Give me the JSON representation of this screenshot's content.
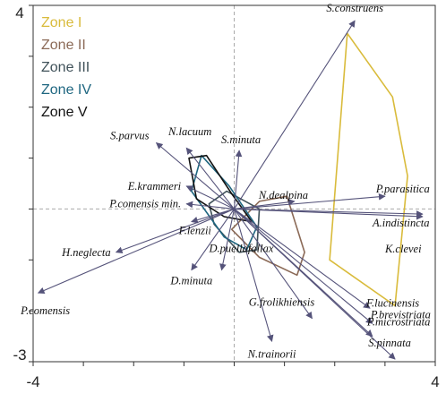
{
  "chart_data": {
    "type": "scatter",
    "title": "",
    "xlabel": "",
    "ylabel": "",
    "xlim": [
      -4,
      4
    ],
    "ylim": [
      -3,
      4
    ],
    "x_ticks": [
      "-4",
      "4"
    ],
    "y_ticks": [
      "4",
      "-3"
    ],
    "grid": false,
    "legend_placement": "top-left",
    "axis_color": "#333333",
    "zero_line_color": "#aaaaaa",
    "arrow_color": "#55537a",
    "species": [
      {
        "label": "S.construens",
        "x": 2.4,
        "y": 3.7
      },
      {
        "label": "S.parvus",
        "x": -1.55,
        "y": 1.3
      },
      {
        "label": "N.lacuum",
        "x": -0.95,
        "y": 1.2
      },
      {
        "label": "S.minuta",
        "x": 0.1,
        "y": 1.15
      },
      {
        "label": "E.krammeri",
        "x": -0.95,
        "y": 0.45
      },
      {
        "label": "N.dealpina",
        "x": 1.2,
        "y": 0.15
      },
      {
        "label": "P.parasitica",
        "x": 3.0,
        "y": 0.25
      },
      {
        "label": "P.comensis min.",
        "x": -0.95,
        "y": 0.1
      },
      {
        "label": "A.indistincta",
        "x": 3.75,
        "y": -0.1
      },
      {
        "label": "H.neglecta",
        "x": -2.35,
        "y": -0.85
      },
      {
        "label": "F.lenzii",
        "x": -0.85,
        "y": -0.25
      },
      {
        "label": "K.clevei",
        "x": 3.75,
        "y": -0.15
      },
      {
        "label": "D.minuta",
        "x": -0.85,
        "y": -1.2
      },
      {
        "label": "D.puellafallax",
        "x": -0.25,
        "y": -1.2
      },
      {
        "label": "P.comensis",
        "x": -3.9,
        "y": -1.65
      },
      {
        "label": "F.lucinensis",
        "x": 2.7,
        "y": -1.95
      },
      {
        "label": "G.frolikhiensis",
        "x": 1.55,
        "y": -2.15
      },
      {
        "label": "P.brevistriata",
        "x": 2.75,
        "y": -2.25
      },
      {
        "label": "P.microstriata",
        "x": 2.75,
        "y": -2.5
      },
      {
        "label": "N.trainorii",
        "x": 0.75,
        "y": -2.6
      },
      {
        "label": "S.pinnata",
        "x": 3.2,
        "y": -2.95
      }
    ],
    "zones": [
      {
        "name": "Zone I",
        "color": "#d9bb3b",
        "points": [
          [
            1.9,
            -1.0
          ],
          [
            3.2,
            -1.9
          ],
          [
            3.45,
            0.65
          ],
          [
            3.15,
            2.2
          ],
          [
            2.25,
            3.45
          ]
        ]
      },
      {
        "name": "Zone II",
        "color": "#8b6a57",
        "points": [
          [
            -0.05,
            -0.4
          ],
          [
            0.5,
            0.15
          ],
          [
            1.05,
            0.25
          ],
          [
            1.4,
            -0.85
          ],
          [
            1.25,
            -1.3
          ],
          [
            0.5,
            -0.95
          ]
        ]
      },
      {
        "name": "Zone III",
        "color": "#3f5159",
        "points": [
          [
            -0.5,
            0.1
          ],
          [
            -0.15,
            0.35
          ],
          [
            0.5,
            0.0
          ],
          [
            0.45,
            -0.8
          ],
          [
            0.1,
            -0.85
          ],
          [
            -0.4,
            -0.3
          ]
        ]
      },
      {
        "name": "Zone IV",
        "color": "#1e6680",
        "points": [
          [
            -0.85,
            0.35
          ],
          [
            -0.65,
            1.05
          ],
          [
            -0.1,
            0.45
          ],
          [
            0.45,
            -0.35
          ],
          [
            0.25,
            -0.8
          ],
          [
            -0.2,
            -0.55
          ]
        ]
      },
      {
        "name": "Zone V",
        "color": "#111111",
        "points": [
          [
            -0.9,
            1.0
          ],
          [
            -0.55,
            1.05
          ],
          [
            -0.05,
            0.3
          ],
          [
            0.35,
            -0.25
          ],
          [
            -0.2,
            -0.15
          ],
          [
            -0.75,
            0.2
          ]
        ]
      }
    ]
  }
}
